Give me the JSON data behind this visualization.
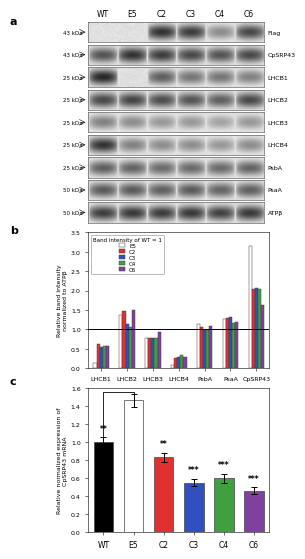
{
  "panel_a": {
    "col_labels": [
      "WT",
      "E5",
      "C2",
      "C3",
      "C4",
      "C6"
    ],
    "row_labels": [
      "Flag",
      "CpSRP43",
      "LHCB1",
      "LHCB2",
      "LHCB3",
      "LHCB4",
      "PsbA",
      "PsaA",
      "ATPβ"
    ],
    "kda_labels": [
      "43 kDa",
      "43 kDa",
      "25 kDa",
      "25 kDa",
      "25 kDa",
      "25 kDa",
      "25 kDa",
      "50 kDa",
      "50 kDa"
    ],
    "band_data": [
      [
        0.0,
        0.0,
        0.9,
        0.85,
        0.5,
        0.8
      ],
      [
        0.75,
        0.9,
        0.85,
        0.8,
        0.75,
        0.8
      ],
      [
        0.95,
        0.15,
        0.7,
        0.6,
        0.6,
        0.55
      ],
      [
        0.8,
        0.82,
        0.78,
        0.75,
        0.7,
        0.8
      ],
      [
        0.55,
        0.5,
        0.45,
        0.45,
        0.4,
        0.45
      ],
      [
        0.9,
        0.55,
        0.5,
        0.5,
        0.45,
        0.5
      ],
      [
        0.7,
        0.68,
        0.65,
        0.65,
        0.65,
        0.68
      ],
      [
        0.72,
        0.72,
        0.7,
        0.72,
        0.68,
        0.7
      ],
      [
        0.85,
        0.87,
        0.85,
        0.87,
        0.83,
        0.87
      ]
    ]
  },
  "panel_b": {
    "categories": [
      "LHCB1",
      "LHCB2",
      "LHCB3",
      "LHCB4",
      "PsbA",
      "PsaA",
      "CpSRP43"
    ],
    "series": {
      "E5": [
        0.14,
        1.37,
        0.77,
        0.08,
        1.15,
        1.27,
        3.15
      ],
      "C2": [
        0.62,
        1.48,
        0.78,
        0.27,
        1.05,
        1.3,
        2.03
      ],
      "C3": [
        0.55,
        1.13,
        0.79,
        0.28,
        0.98,
        1.32,
        2.07
      ],
      "C4": [
        0.57,
        1.05,
        0.77,
        0.34,
        0.99,
        1.17,
        2.05
      ],
      "C6": [
        0.58,
        1.5,
        0.94,
        0.3,
        1.1,
        1.19,
        1.63
      ]
    },
    "colors": {
      "E5": "#ffffff",
      "C2": "#e03030",
      "C3": "#3050c0",
      "C4": "#40a040",
      "C6": "#8040a0"
    },
    "ylabel": "Relative band intensity\nnormalized to ATPβ",
    "legend_title": "Band intensity of WT = 1",
    "ylim": [
      0.0,
      3.5
    ],
    "yticks": [
      0.0,
      0.5,
      1.0,
      1.5,
      2.0,
      2.5,
      3.0,
      3.5
    ]
  },
  "panel_c": {
    "categories": [
      "WT",
      "E5",
      "C2",
      "C3",
      "C4",
      "C6"
    ],
    "values": [
      1.0,
      1.46,
      0.83,
      0.55,
      0.6,
      0.46
    ],
    "errors": [
      0.05,
      0.07,
      0.05,
      0.04,
      0.05,
      0.04
    ],
    "colors": [
      "#000000",
      "#ffffff",
      "#e03030",
      "#3050c0",
      "#40a040",
      "#8040a0"
    ],
    "significance": [
      "**",
      "",
      "**",
      "***",
      "***",
      "***"
    ],
    "ylabel": "Relative normalized expression of\nCpSRP43 mRNA",
    "ylim": [
      0.0,
      1.6
    ],
    "yticks": [
      0.0,
      0.2,
      0.4,
      0.6,
      0.8,
      1.0,
      1.2,
      1.4,
      1.6
    ]
  }
}
